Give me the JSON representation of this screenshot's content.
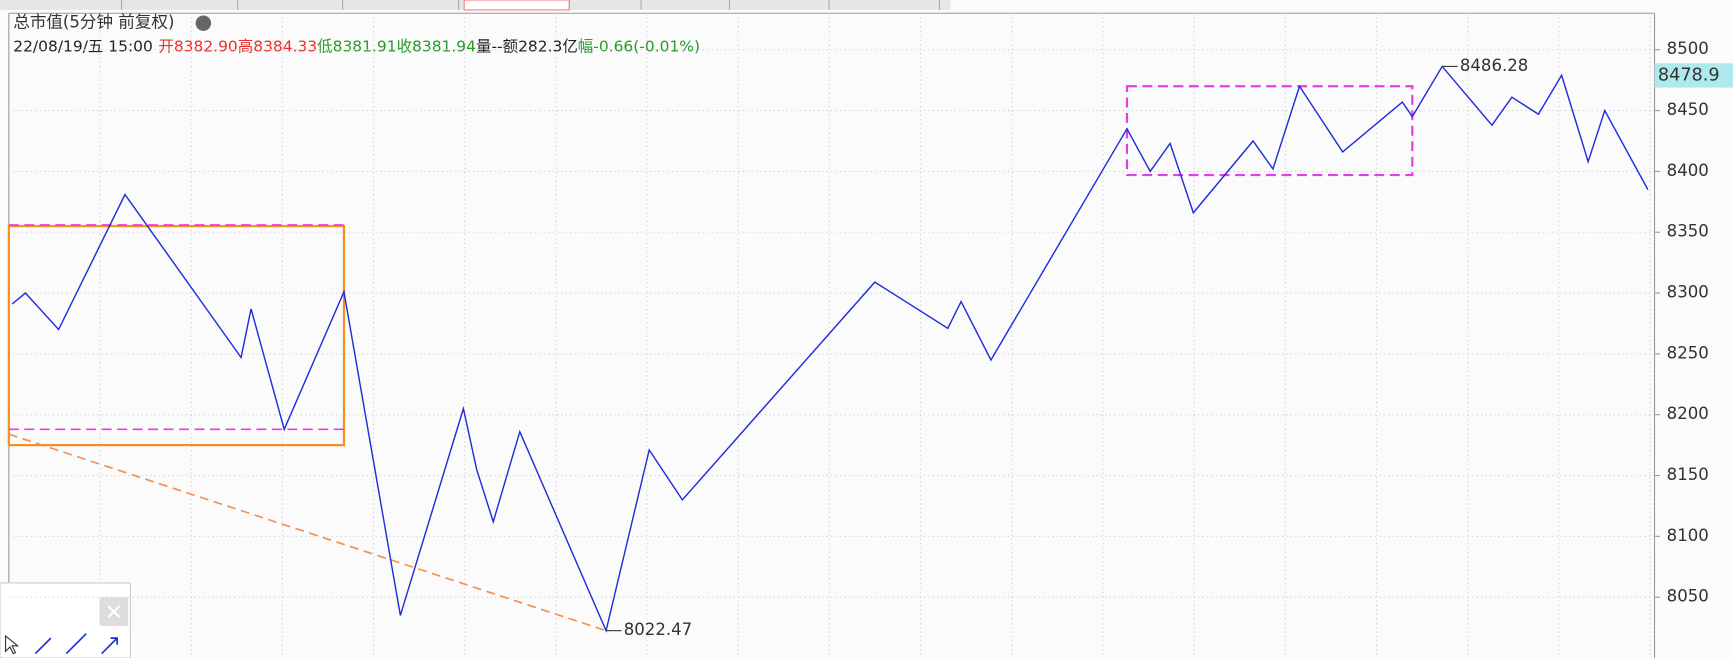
{
  "chart_data": {
    "type": "zigzag",
    "title": "总市值(5分钟 前复权)",
    "info": [
      {
        "text": "22/08/19/五 15:00",
        "color": "#222222"
      },
      {
        "text": "开8382.90",
        "color": "#e8322c"
      },
      {
        "text": "高8384.33",
        "color": "#e8322c"
      },
      {
        "text": "低8381.91",
        "color": "#2a9a2a"
      },
      {
        "text": "收8381.94",
        "color": "#2a9a2a"
      },
      {
        "text": "量--",
        "color": "#222222"
      },
      {
        "text": "额282.3亿",
        "color": "#222222"
      },
      {
        "text": "幅-0.66(-0.01%)",
        "color": "#2a9a2a"
      }
    ],
    "x": [
      1,
      5,
      15,
      35,
      70,
      73,
      83,
      101,
      118,
      137,
      141,
      146,
      154,
      180,
      193,
      203,
      261,
      283,
      287,
      296,
      337,
      344,
      350,
      357,
      375,
      381,
      389,
      402,
      420,
      423,
      432,
      447,
      453,
      461,
      468,
      476,
      481,
      494
    ],
    "series": [
      {
        "color": "#1f2fd8",
        "values": [
          8291,
          8300,
          8270,
          8381,
          8247,
          8287,
          8188,
          8301,
          8035,
          8205,
          8155,
          8112,
          8186,
          8022.47,
          8171,
          8130,
          8309,
          8271,
          8293,
          8245,
          8435,
          8400,
          8423,
          8366,
          8425,
          8402,
          8470,
          8416,
          8457,
          8445,
          8486.28,
          8438,
          8461,
          8447,
          8479,
          8408,
          8450,
          8385
        ]
      }
    ],
    "annotated_points": [
      13,
      30
    ],
    "boxes": [
      {
        "x": [
          0,
          101
        ],
        "y": [
          8175,
          8355
        ],
        "color": "#f39020",
        "dashed": false
      },
      {
        "x": [
          337,
          423
        ],
        "y": [
          8397,
          8470
        ],
        "color": "#e83ce8",
        "dashed": true
      }
    ],
    "hlines": [
      {
        "x": [
          0,
          101
        ],
        "y": 8356,
        "color": "#e83ce8"
      },
      {
        "x": [
          0,
          101
        ],
        "y": 8188,
        "color": "#e83ce8"
      }
    ],
    "trendline": {
      "x": [
        0,
        180
      ],
      "y": [
        8184,
        8022.47
      ],
      "color": "#f39050"
    },
    "last_price": 8478.9,
    "xlim": [
      0,
      496
    ],
    "ylim": [
      8000,
      8530
    ],
    "yticks": [
      8050,
      8100,
      8150,
      8200,
      8250,
      8300,
      8350,
      8400,
      8450,
      8500
    ],
    "grid": true
  }
}
